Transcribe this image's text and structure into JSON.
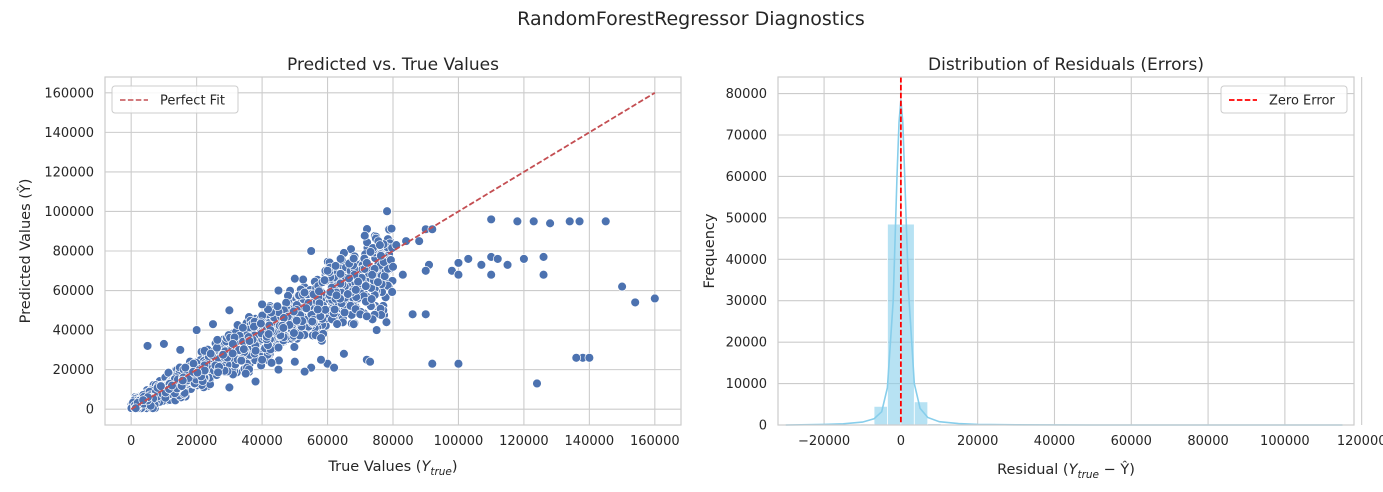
{
  "figure": {
    "title": "RandomForestRegressor Diagnostics"
  },
  "chart_data": [
    {
      "type": "scatter",
      "title": "Predicted vs. True Values",
      "xlabel": "True Values (Y_true)",
      "xlabel_main": "True Values (",
      "xlabel_var": "Y",
      "xlabel_sub": "true",
      "xlabel_close": ")",
      "ylabel": "Predicted Values (Ŷ)",
      "ylabel_text": "Predicted Values (Ŷ)",
      "xlim": [
        -8000,
        168000
      ],
      "ylim": [
        -8000,
        168000
      ],
      "xticks": [
        "0",
        "20000",
        "40000",
        "60000",
        "80000",
        "100000",
        "120000",
        "140000",
        "160000"
      ],
      "yticks": [
        "0",
        "20000",
        "40000",
        "60000",
        "80000",
        "100000",
        "120000",
        "140000",
        "160000"
      ],
      "grid": true,
      "legend": {
        "entries": [
          "Perfect Fit"
        ],
        "placement": "upper-left"
      },
      "point_color": "#4c72b0",
      "reference_line": {
        "name": "Perfect Fit",
        "from": [
          0,
          0
        ],
        "to": [
          160000,
          160000
        ],
        "color": "#c44e52",
        "style": "dashed"
      },
      "points": [
        [
          110000,
          96000
        ],
        [
          118000,
          95000
        ],
        [
          123000,
          95000
        ],
        [
          128000,
          94000
        ],
        [
          134000,
          95000
        ],
        [
          137000,
          95000
        ],
        [
          145000,
          95000
        ],
        [
          90000,
          91000
        ],
        [
          92000,
          91000
        ],
        [
          84000,
          85000
        ],
        [
          88000,
          85000
        ],
        [
          81000,
          83000
        ],
        [
          120000,
          76000
        ],
        [
          126000,
          77000
        ],
        [
          110000,
          77000
        ],
        [
          112000,
          76000
        ],
        [
          103000,
          76000
        ],
        [
          107000,
          73000
        ],
        [
          115000,
          73000
        ],
        [
          100000,
          74000
        ],
        [
          98000,
          70000
        ],
        [
          100000,
          68000
        ],
        [
          110000,
          68000
        ],
        [
          126000,
          68000
        ],
        [
          91000,
          73000
        ],
        [
          90000,
          70000
        ],
        [
          80000,
          72000
        ],
        [
          83000,
          68000
        ],
        [
          150000,
          62000
        ],
        [
          154000,
          54000
        ],
        [
          160000,
          56000
        ],
        [
          86000,
          48000
        ],
        [
          90000,
          48000
        ],
        [
          70000,
          48000
        ],
        [
          72000,
          47000
        ],
        [
          68000,
          43000
        ],
        [
          75000,
          40000
        ],
        [
          78000,
          44000
        ],
        [
          138000,
          26000
        ],
        [
          140000,
          26000
        ],
        [
          136000,
          26000
        ],
        [
          124000,
          13000
        ],
        [
          92000,
          23000
        ],
        [
          100000,
          23000
        ],
        [
          72000,
          25000
        ],
        [
          73000,
          24000
        ],
        [
          60000,
          23000
        ],
        [
          62000,
          21000
        ],
        [
          58000,
          25000
        ],
        [
          65000,
          28000
        ],
        [
          55000,
          21000
        ],
        [
          53000,
          19000
        ],
        [
          65000,
          79000
        ],
        [
          55000,
          80000
        ],
        [
          64000,
          76000
        ],
        [
          76000,
          83000
        ],
        [
          72000,
          74000
        ],
        [
          5000,
          32000
        ],
        [
          10000,
          33000
        ],
        [
          15000,
          30000
        ],
        [
          20000,
          40000
        ],
        [
          25000,
          43000
        ],
        [
          30000,
          50000
        ],
        [
          40000,
          53000
        ],
        [
          45000,
          60000
        ],
        [
          50000,
          66000
        ],
        [
          60000,
          70000
        ],
        [
          35000,
          18000
        ],
        [
          40000,
          25000
        ],
        [
          45000,
          20000
        ],
        [
          50000,
          24000
        ],
        [
          38000,
          14000
        ],
        [
          30000,
          11000
        ],
        [
          42000,
          38000
        ],
        [
          58000,
          36000
        ]
      ]
    },
    {
      "type": "histogram",
      "title": "Distribution of Residuals (Errors)",
      "xlabel": "Residual (Y_true − Ŷ)",
      "xlabel_main": "Residual (",
      "xlabel_var": "Y",
      "xlabel_sub": "true",
      "xlabel_rest": " − Ŷ)",
      "ylabel": "Frequency",
      "xlim": [
        -32000,
        118000
      ],
      "ylim": [
        0,
        84000
      ],
      "xticks": [
        "−20000",
        "0",
        "20000",
        "40000",
        "60000",
        "80000",
        "100000",
        "120000"
      ],
      "yticks": [
        "0",
        "10000",
        "20000",
        "30000",
        "40000",
        "50000",
        "60000",
        "70000",
        "80000"
      ],
      "grid": true,
      "legend": {
        "entries": [
          "Zero Error"
        ],
        "placement": "upper-right"
      },
      "bar_color": "#87ceeb",
      "kde_color": "#87ceeb",
      "zero_line": {
        "name": "Zero Error",
        "x": 0,
        "color": "#ff0000",
        "style": "dashed"
      },
      "bins": [
        {
          "x0": -7000,
          "x1": -3500,
          "count": 4500
        },
        {
          "x0": -3500,
          "x1": 0,
          "count": 48500
        },
        {
          "x0": 0,
          "x1": 3500,
          "count": 48500
        },
        {
          "x0": 3500,
          "x1": 7000,
          "count": 5600
        },
        {
          "x0": 7000,
          "x1": 10500,
          "count": 350
        },
        {
          "x0": 10500,
          "x1": 14000,
          "count": 150
        },
        {
          "x0": -10500,
          "x1": -7000,
          "count": 250
        },
        {
          "x0": -14000,
          "x1": -10500,
          "count": 100
        }
      ],
      "kde": [
        [
          -30000,
          0
        ],
        [
          -20000,
          150
        ],
        [
          -15000,
          300
        ],
        [
          -10000,
          700
        ],
        [
          -7000,
          1500
        ],
        [
          -5000,
          3200
        ],
        [
          -3500,
          9000
        ],
        [
          -2000,
          30000
        ],
        [
          -1000,
          60000
        ],
        [
          -500,
          73000
        ],
        [
          0,
          78500
        ],
        [
          500,
          73000
        ],
        [
          1000,
          60000
        ],
        [
          2000,
          32000
        ],
        [
          3500,
          10000
        ],
        [
          5000,
          4000
        ],
        [
          7000,
          1800
        ],
        [
          10000,
          800
        ],
        [
          15000,
          350
        ],
        [
          20000,
          150
        ],
        [
          30000,
          50
        ],
        [
          50000,
          10
        ],
        [
          80000,
          0
        ],
        [
          115000,
          0
        ]
      ]
    }
  ]
}
